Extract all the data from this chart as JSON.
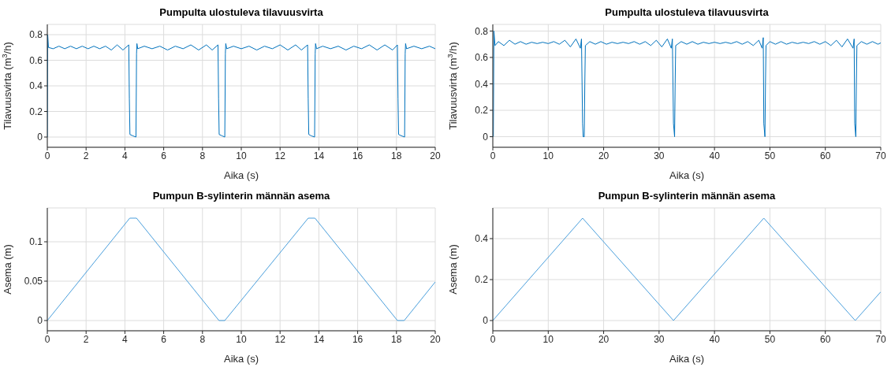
{
  "chart_data": [
    {
      "type": "line",
      "title": "Pumpulta ulostuleva tilavuusvirta",
      "xlabel": "Aika (s)",
      "ylabel": "Tilavuusvirta (m$^{3}$/h)",
      "xlim": [
        0,
        20
      ],
      "xticks": [
        0,
        2,
        4,
        6,
        8,
        10,
        12,
        14,
        16,
        18,
        20
      ],
      "ylim": [
        -0.08,
        0.88
      ],
      "yticks": [
        0,
        0.2,
        0.4,
        0.6,
        0.8
      ],
      "grid": true,
      "x": [
        0,
        0.02,
        0.06,
        0.3,
        0.6,
        0.9,
        1.2,
        1.5,
        1.8,
        2.1,
        2.4,
        2.7,
        3.0,
        3.3,
        3.6,
        3.9,
        4.2,
        4.23,
        4.26,
        4.4,
        4.57,
        4.59,
        4.6,
        4.62,
        4.66,
        5.0,
        5.4,
        5.8,
        6.2,
        6.6,
        7.0,
        7.4,
        7.8,
        8.2,
        8.5,
        8.8,
        8.83,
        8.86,
        9.0,
        9.15,
        9.17,
        9.18,
        9.2,
        9.25,
        9.6,
        10.0,
        10.4,
        10.8,
        11.2,
        11.6,
        12.0,
        12.4,
        12.8,
        13.1,
        13.42,
        13.45,
        13.48,
        13.6,
        13.78,
        13.8,
        13.81,
        13.83,
        13.88,
        14.2,
        14.6,
        15.0,
        15.4,
        15.8,
        16.2,
        16.6,
        17.0,
        17.4,
        17.8,
        18.05,
        18.08,
        18.11,
        18.25,
        18.42,
        18.44,
        18.45,
        18.47,
        18.52,
        18.9,
        19.3,
        19.7,
        20
      ],
      "series": [
        {
          "color": "#0072bd",
          "values": [
            0,
            0.8,
            0.7,
            0.69,
            0.71,
            0.69,
            0.71,
            0.69,
            0.71,
            0.69,
            0.71,
            0.69,
            0.71,
            0.68,
            0.72,
            0.68,
            0.72,
            0.3,
            0.02,
            0.01,
            0,
            0.4,
            0.65,
            0.73,
            0.69,
            0.71,
            0.69,
            0.71,
            0.68,
            0.71,
            0.69,
            0.72,
            0.68,
            0.72,
            0.68,
            0.72,
            0.3,
            0.02,
            0.01,
            0,
            0.4,
            0.65,
            0.73,
            0.69,
            0.71,
            0.69,
            0.71,
            0.68,
            0.71,
            0.69,
            0.72,
            0.68,
            0.72,
            0.68,
            0.72,
            0.3,
            0.02,
            0.01,
            0,
            0.4,
            0.65,
            0.73,
            0.69,
            0.71,
            0.69,
            0.71,
            0.68,
            0.71,
            0.69,
            0.72,
            0.68,
            0.72,
            0.68,
            0.72,
            0.3,
            0.02,
            0.01,
            0,
            0.4,
            0.65,
            0.73,
            0.69,
            0.71,
            0.69,
            0.71,
            0.69
          ]
        }
      ]
    },
    {
      "type": "line",
      "title": "Pumpulta ulostuleva tilavuusvirta",
      "xlabel": "Aika (s)",
      "ylabel": "Tilavuusvirta (m$^{3}$/h)",
      "xlim": [
        0,
        70
      ],
      "xticks": [
        0,
        10,
        20,
        30,
        40,
        50,
        60,
        70
      ],
      "ylim": [
        -0.08,
        0.85
      ],
      "yticks": [
        0,
        0.2,
        0.4,
        0.6,
        0.8
      ],
      "grid": true,
      "x": [
        0.1,
        0.2,
        0.4,
        1,
        2,
        3,
        4,
        5,
        6,
        7,
        8,
        9,
        10,
        11,
        12,
        13,
        14,
        15,
        15.8,
        16.0,
        16.2,
        16.3,
        16.5,
        16.6,
        16.7,
        17.5,
        18.5,
        19.5,
        20.5,
        21.5,
        22.5,
        23.5,
        24.5,
        25.5,
        26.5,
        27.5,
        28.5,
        29.5,
        30.5,
        31.5,
        32.2,
        32.4,
        32.6,
        32.8,
        32.9,
        33.0,
        34,
        35,
        36,
        37,
        38,
        39,
        40,
        41,
        42,
        43,
        44,
        45,
        46,
        47,
        48,
        48.6,
        48.8,
        48.9,
        49.1,
        49.2,
        49.3,
        50,
        51,
        52,
        53,
        54,
        55,
        56,
        57,
        58,
        59,
        60,
        61,
        62,
        63,
        64,
        65.0,
        65.2,
        65.3,
        65.5,
        65.6,
        65.7,
        66.5,
        67.5,
        68.5,
        69.5,
        70
      ],
      "series": [
        {
          "color": "#0072bd",
          "values": [
            0,
            0.8,
            0.69,
            0.72,
            0.69,
            0.73,
            0.7,
            0.72,
            0.7,
            0.715,
            0.705,
            0.715,
            0.705,
            0.72,
            0.7,
            0.73,
            0.68,
            0.74,
            0.67,
            0.74,
            0.1,
            0,
            0,
            0.4,
            0.69,
            0.72,
            0.7,
            0.72,
            0.7,
            0.715,
            0.705,
            0.715,
            0.705,
            0.72,
            0.7,
            0.72,
            0.69,
            0.73,
            0.68,
            0.74,
            0.67,
            0.74,
            0.1,
            0,
            0.4,
            0.69,
            0.72,
            0.7,
            0.72,
            0.7,
            0.715,
            0.705,
            0.715,
            0.705,
            0.715,
            0.705,
            0.72,
            0.7,
            0.72,
            0.69,
            0.73,
            0.67,
            0.75,
            0.1,
            0,
            0.4,
            0.69,
            0.72,
            0.7,
            0.72,
            0.7,
            0.715,
            0.705,
            0.715,
            0.705,
            0.72,
            0.7,
            0.72,
            0.69,
            0.73,
            0.68,
            0.74,
            0.67,
            0.74,
            0.1,
            0,
            0.4,
            0.69,
            0.72,
            0.7,
            0.72,
            0.7,
            0.71
          ]
        }
      ]
    },
    {
      "type": "line",
      "title": "Pumpun B-sylinterin männän asema",
      "xlabel": "Aika (s)",
      "ylabel": "Asema (m)",
      "xlim": [
        0,
        20
      ],
      "xticks": [
        0,
        2,
        4,
        6,
        8,
        10,
        12,
        14,
        16,
        18,
        20
      ],
      "ylim": [
        -0.013,
        0.143
      ],
      "yticks": [
        0,
        0.05,
        0.1
      ],
      "grid": true,
      "x": [
        0,
        4.25,
        4.6,
        8.85,
        9.15,
        13.45,
        13.8,
        18.05,
        18.4,
        20
      ],
      "series": [
        {
          "color": "#4a9fdc",
          "values": [
            0,
            0.13,
            0.13,
            0,
            0,
            0.13,
            0.13,
            0,
            0,
            0.049
          ]
        }
      ]
    },
    {
      "type": "line",
      "title": "Pumpun B-sylinterin männän asema",
      "xlabel": "Aika (s)",
      "ylabel": "Asema (m)",
      "xlim": [
        0,
        70
      ],
      "xticks": [
        0,
        10,
        20,
        30,
        40,
        50,
        60,
        70
      ],
      "ylim": [
        -0.05,
        0.55
      ],
      "yticks": [
        0,
        0.2,
        0.4
      ],
      "grid": true,
      "x": [
        0,
        16.2,
        32.6,
        48.9,
        65.4,
        70
      ],
      "series": [
        {
          "color": "#4a9fdc",
          "values": [
            0,
            0.5,
            0,
            0.5,
            0,
            0.14
          ]
        }
      ]
    }
  ]
}
